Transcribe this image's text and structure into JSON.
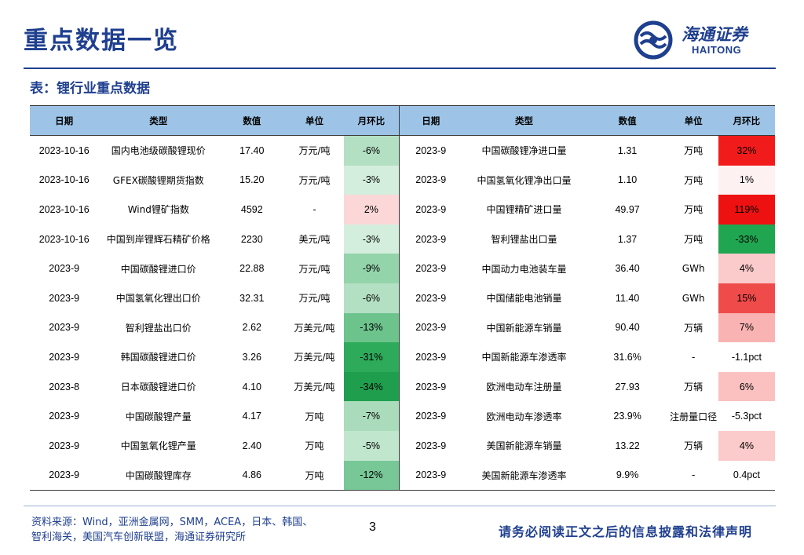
{
  "page": {
    "title": "重点数据一览",
    "logo_cn": "海通证券",
    "logo_en": "HAITONG",
    "subtitle": "表：锂行业重点数据",
    "source_line1": "资料来源：Wind，亚洲金属网，SMM，ACEA，日本、韩国、",
    "source_line2": "智利海关，美国汽车创新联盟，海通证券研究所",
    "page_number": "3",
    "disclaimer": "请务必阅读正文之后的信息披露和法律声明",
    "colors": {
      "brand_blue": "#1f3f8f",
      "header_blue": "#9dc3e6"
    }
  },
  "table": {
    "headers": [
      "日期",
      "类型",
      "数值",
      "单位",
      "月环比",
      "日期",
      "类型",
      "数值",
      "单位",
      "月环比"
    ],
    "rows": [
      [
        [
          "2023-10-16",
          "国内电池级碳酸锂现价",
          "17.40",
          "万元/吨",
          "-6%",
          "#b3e0c3"
        ],
        [
          "2023-9",
          "中国碳酸锂净进口量",
          "1.31",
          "万吨",
          "32%",
          "#f21b1b"
        ]
      ],
      [
        [
          "2023-10-16",
          "GFEX碳酸锂期货指数",
          "15.20",
          "万元/吨",
          "-3%",
          "#d4eedd"
        ],
        [
          "2023-9",
          "中国氢氧化锂净出口量",
          "1.10",
          "万吨",
          "1%",
          "#fef1f1"
        ]
      ],
      [
        [
          "2023-10-16",
          "Wind锂矿指数",
          "4592",
          "-",
          "2%",
          "#fbd7d7"
        ],
        [
          "2023-9",
          "中国锂精矿进口量",
          "49.97",
          "万吨",
          "119%",
          "#ee1111"
        ]
      ],
      [
        [
          "2023-10-16",
          "中国到岸锂辉石精矿价格",
          "2230",
          "美元/吨",
          "-3%",
          "#d4eedd"
        ],
        [
          "2023-9",
          "智利锂盐出口量",
          "1.37",
          "万吨",
          "-33%",
          "#20a550"
        ]
      ],
      [
        [
          "2023-9",
          "中国碳酸锂进口价",
          "22.88",
          "万元/吨",
          "-9%",
          "#93d4ab"
        ],
        [
          "2023-9",
          "中国动力电池装车量",
          "36.40",
          "GWh",
          "4%",
          "#fbcaca"
        ]
      ],
      [
        [
          "2023-9",
          "中国氢氧化锂出口价",
          "32.31",
          "万元/吨",
          "-6%",
          "#b3e0c3"
        ],
        [
          "2023-9",
          "中国储能电池销量",
          "11.40",
          "GWh",
          "15%",
          "#f04b4b"
        ]
      ],
      [
        [
          "2023-9",
          "智利锂盐出口价",
          "2.62",
          "万美元/吨",
          "-13%",
          "#6cc38c"
        ],
        [
          "2023-9",
          "中国新能源车销量",
          "90.40",
          "万辆",
          "7%",
          "#f9b3b3"
        ]
      ],
      [
        [
          "2023-9",
          "韩国碳酸锂进口价",
          "3.26",
          "万美元/吨",
          "-31%",
          "#2eaa5b"
        ],
        [
          "2023-9",
          "中国新能源车渗透率",
          "31.6%",
          "-",
          "-1.1pct",
          ""
        ]
      ],
      [
        [
          "2023-8",
          "日本碳酸锂进口价",
          "4.10",
          "万美元/吨",
          "-34%",
          "#1f9f4e"
        ],
        [
          "2023-9",
          "欧洲电动车注册量",
          "27.93",
          "万辆",
          "6%",
          "#fbc1c1"
        ]
      ],
      [
        [
          "2023-9",
          "中国碳酸锂产量",
          "4.17",
          "万吨",
          "-7%",
          "#aadcbc"
        ],
        [
          "2023-9",
          "欧洲电动车渗透率",
          "23.9%",
          "注册量口径",
          "-5.3pct",
          ""
        ]
      ],
      [
        [
          "2023-9",
          "中国氢氧化锂产量",
          "2.40",
          "万吨",
          "-5%",
          "#c1e6ce"
        ],
        [
          "2023-9",
          "美国新能源车销量",
          "13.22",
          "万辆",
          "4%",
          "#fbcaca"
        ]
      ],
      [
        [
          "2023-9",
          "中国碳酸锂库存",
          "4.86",
          "万吨",
          "-12%",
          "#78c897"
        ],
        [
          "2023-9",
          "美国新能源车渗透率",
          "9.9%",
          "-",
          "0.4pct",
          ""
        ]
      ]
    ]
  }
}
